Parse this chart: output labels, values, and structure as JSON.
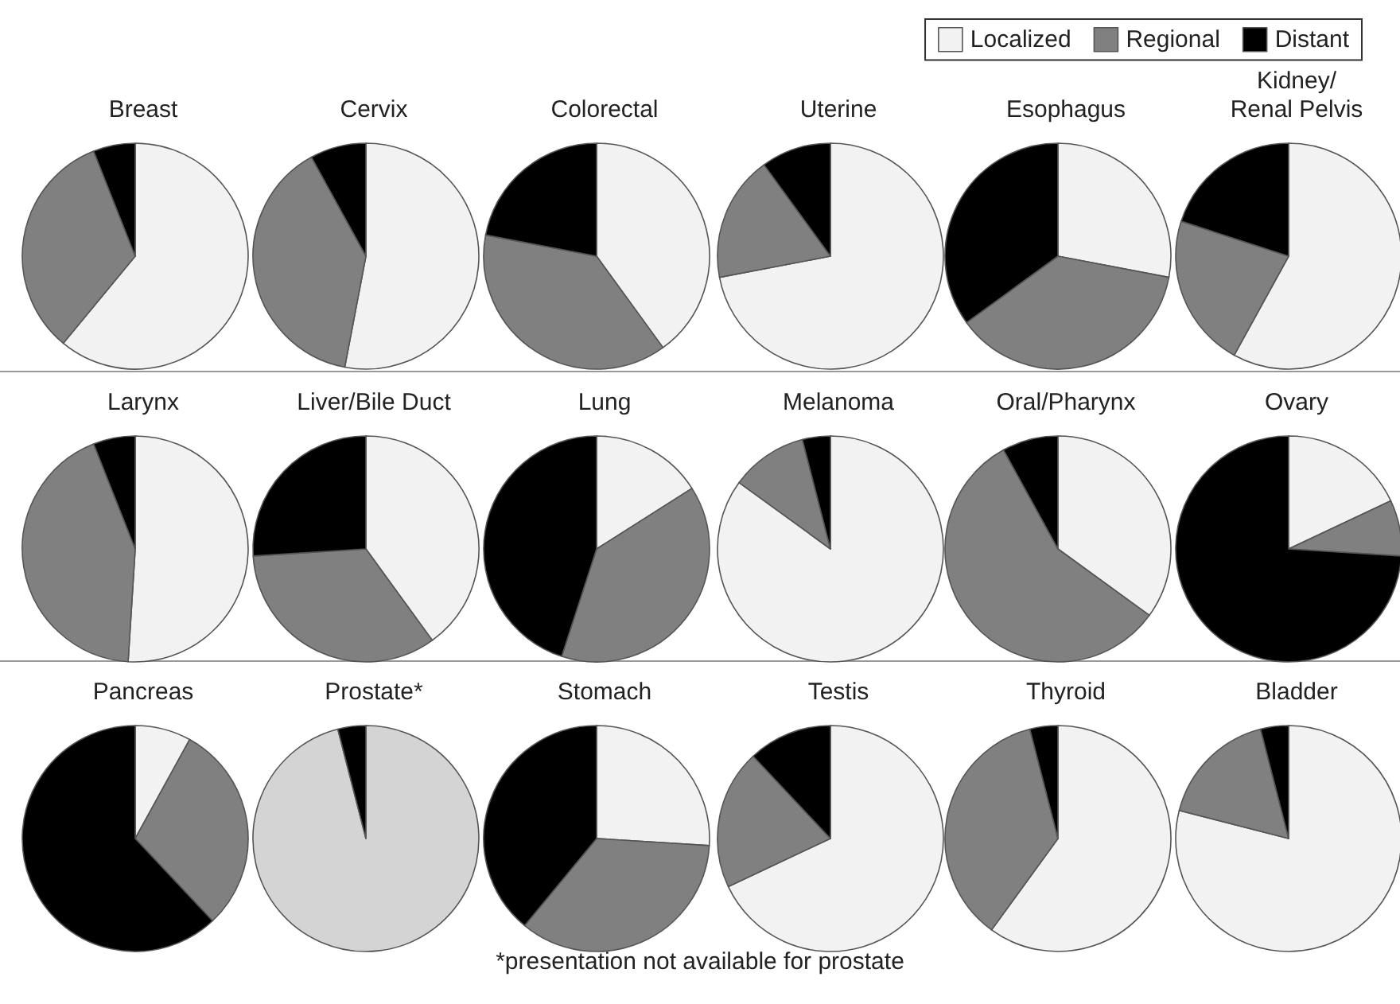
{
  "chart_data": [
    {
      "type": "pie",
      "title": "Breast",
      "categories": [
        "Localized",
        "Regional",
        "Distant"
      ],
      "values": [
        61,
        33,
        6
      ],
      "colors": [
        "#f2f2f2",
        "#808080",
        "#000000"
      ],
      "legend": "top right"
    },
    {
      "type": "pie",
      "title": "Cervix",
      "categories": [
        null,
        null,
        null
      ],
      "values": [
        53,
        39,
        8
      ],
      "colors": [
        "#f2f2f2",
        "#808080",
        "#000000"
      ]
    },
    {
      "type": "pie",
      "title": "Colorectal",
      "categories": [
        null,
        null,
        null
      ],
      "values": [
        40,
        38,
        22
      ],
      "colors": [
        "#f2f2f2",
        "#808080",
        "#000000"
      ]
    },
    {
      "type": "pie",
      "title": "Uterine",
      "categories": [
        null,
        null,
        null
      ],
      "values": [
        72,
        18,
        10
      ],
      "colors": [
        "#f2f2f2",
        "#808080",
        "#000000"
      ]
    },
    {
      "type": "pie",
      "title": "Esophagus",
      "categories": [
        null,
        null,
        null
      ],
      "values": [
        28,
        37,
        35
      ],
      "colors": [
        "#f2f2f2",
        "#808080",
        "#000000"
      ]
    },
    {
      "type": "pie",
      "title": "Kidney/\nRenal Pelvis",
      "categories": [
        null,
        null,
        null
      ],
      "values": [
        58,
        22,
        20
      ],
      "colors": [
        "#f2f2f2",
        "#808080",
        "#000000"
      ]
    },
    {
      "type": "pie",
      "title": "Larynx",
      "categories": [
        null,
        null,
        null
      ],
      "values": [
        51,
        43,
        6
      ],
      "colors": [
        "#f2f2f2",
        "#808080",
        "#000000"
      ]
    },
    {
      "type": "pie",
      "title": "Liver/Bile Duct",
      "categories": [
        null,
        null,
        null
      ],
      "values": [
        40,
        34,
        26
      ],
      "colors": [
        "#f2f2f2",
        "#808080",
        "#000000"
      ]
    },
    {
      "type": "pie",
      "title": "Lung",
      "categories": [
        null,
        null,
        null
      ],
      "values": [
        16,
        39,
        45
      ],
      "colors": [
        "#f2f2f2",
        "#808080",
        "#000000"
      ]
    },
    {
      "type": "pie",
      "title": "Melanoma",
      "categories": [
        null,
        null,
        null
      ],
      "values": [
        85,
        11,
        4
      ],
      "colors": [
        "#f2f2f2",
        "#808080",
        "#000000"
      ]
    },
    {
      "type": "pie",
      "title": "Oral/Pharynx",
      "categories": [
        null,
        null,
        null
      ],
      "values": [
        35,
        57,
        8
      ],
      "colors": [
        "#f2f2f2",
        "#808080",
        "#000000"
      ]
    },
    {
      "type": "pie",
      "title": "Ovary",
      "categories": [
        null,
        null,
        null
      ],
      "values": [
        18,
        8,
        74
      ],
      "colors": [
        "#f2f2f2",
        "#808080",
        "#000000"
      ]
    },
    {
      "type": "pie",
      "title": "Pancreas",
      "categories": [
        null,
        null,
        null
      ],
      "values": [
        8,
        30,
        62
      ],
      "colors": [
        "#f2f2f2",
        "#808080",
        "#000000"
      ]
    },
    {
      "type": "pie",
      "title": "Prostate*",
      "categories": [
        null,
        null
      ],
      "values": [
        96,
        4
      ],
      "colors": [
        "#d4d4d4",
        "#000000"
      ],
      "annotations": [
        "*presentation not available for prostate"
      ]
    },
    {
      "type": "pie",
      "title": "Stomach",
      "categories": [
        null,
        null,
        null
      ],
      "values": [
        26,
        35,
        39
      ],
      "colors": [
        "#f2f2f2",
        "#808080",
        "#000000"
      ]
    },
    {
      "type": "pie",
      "title": "Testis",
      "categories": [
        null,
        null,
        null
      ],
      "values": [
        68,
        20,
        12
      ],
      "colors": [
        "#f2f2f2",
        "#808080",
        "#000000"
      ]
    },
    {
      "type": "pie",
      "title": "Thyroid",
      "categories": [
        null,
        null,
        null
      ],
      "values": [
        60,
        36,
        4
      ],
      "colors": [
        "#f2f2f2",
        "#808080",
        "#000000"
      ]
    },
    {
      "type": "pie",
      "title": "Bladder",
      "categories": [
        null,
        null,
        null
      ],
      "values": [
        79,
        17,
        4
      ],
      "colors": [
        "#f2f2f2",
        "#808080",
        "#000000"
      ]
    }
  ]
}
